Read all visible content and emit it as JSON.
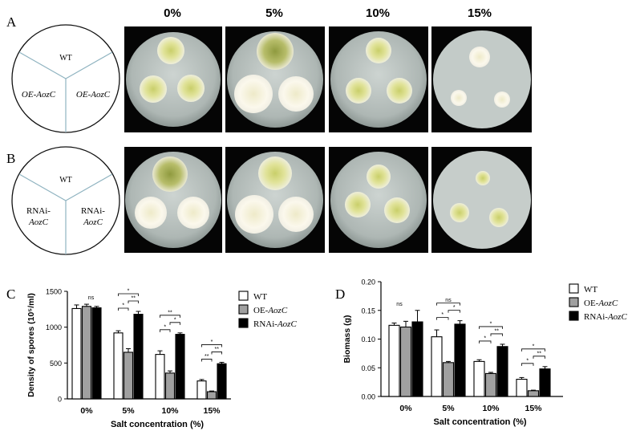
{
  "figure": {
    "panels": {
      "a": "A",
      "b": "B",
      "c": "C",
      "d": "D"
    },
    "conditions": [
      "0%",
      "5%",
      "10%",
      "15%"
    ],
    "schematic_a": {
      "top": "WT",
      "left": "OE-AozC",
      "right": "OE-AozC"
    },
    "schematic_b": {
      "top": "WT",
      "left_line1": "RNAi-",
      "left_line2": "AozC",
      "right_line1": "RNAi-",
      "right_line2": "AozC"
    },
    "colors": {
      "wt": "#ffffff",
      "oe": "#a0a0a0",
      "rnai": "#000000",
      "plate_bg": "#b9c1be",
      "colony_yellow": "#d9dc8f",
      "colony_white": "#f4f1e6"
    }
  },
  "chart_data": [
    {
      "type": "bar",
      "panel": "C",
      "categories": [
        "0%",
        "5%",
        "10%",
        "15%"
      ],
      "series": [
        {
          "name": "WT",
          "values": [
            1260,
            920,
            620,
            250
          ],
          "errors": [
            50,
            30,
            50,
            20
          ]
        },
        {
          "name": "OE-AozC",
          "values": [
            1290,
            650,
            360,
            100
          ],
          "errors": [
            30,
            50,
            30,
            10
          ]
        },
        {
          "name": "RNAi-AozC",
          "values": [
            1270,
            1180,
            900,
            490
          ],
          "errors": [
            20,
            40,
            20,
            20
          ]
        }
      ],
      "ylabel": "Density of spores (10⁵/ml)",
      "xlabel": "Salt concentration (%)",
      "ylim": [
        0,
        1500
      ],
      "yticks": [
        "0",
        "500",
        "1000",
        "1500"
      ],
      "significance": [
        "ns",
        "*",
        "*",
        "**",
        "*",
        "**",
        "*",
        "**",
        "*",
        "**"
      ],
      "legend_position": "top-right"
    },
    {
      "type": "bar",
      "panel": "D",
      "categories": [
        "0%",
        "5%",
        "10%",
        "15%"
      ],
      "series": [
        {
          "name": "WT",
          "values": [
            0.124,
            0.104,
            0.061,
            0.03
          ],
          "errors": [
            0.004,
            0.012,
            0.003,
            0.003
          ]
        },
        {
          "name": "OE-AozC",
          "values": [
            0.121,
            0.059,
            0.04,
            0.01
          ],
          "errors": [
            0.01,
            0.002,
            0.002,
            0.001
          ]
        },
        {
          "name": "RNAi-AozC",
          "values": [
            0.13,
            0.126,
            0.087,
            0.048
          ],
          "errors": [
            0.02,
            0.006,
            0.004,
            0.004
          ]
        }
      ],
      "ylabel": "Biomass (g)",
      "xlabel": "Salt concentration (%)",
      "ylim": [
        0,
        0.2
      ],
      "yticks": [
        "0.00",
        "0.05",
        "0.10",
        "0.15",
        "0.20"
      ],
      "significance": [
        "ns",
        "ns",
        "*",
        "*",
        "*",
        "*",
        "**",
        "*",
        "*",
        "**"
      ],
      "legend_position": "top-right"
    }
  ]
}
